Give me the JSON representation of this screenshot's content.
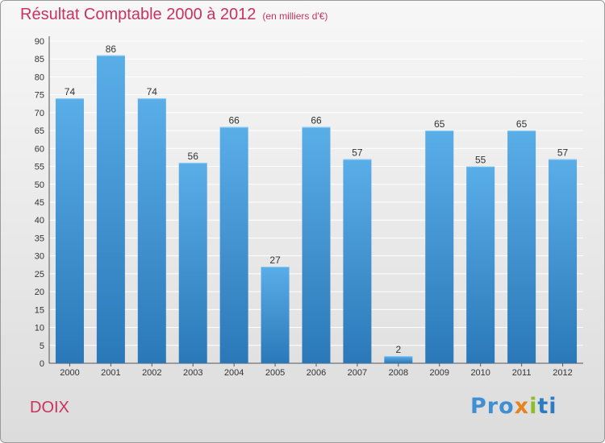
{
  "chart_data": {
    "type": "bar",
    "title": "Résultat Comptable 2000 à 2012",
    "subtitle": "(en milliers d'€)",
    "categories": [
      "2000",
      "2001",
      "2002",
      "2003",
      "2004",
      "2005",
      "2006",
      "2007",
      "2008",
      "2009",
      "2010",
      "2011",
      "2012"
    ],
    "values": [
      74,
      86,
      74,
      56,
      66,
      27,
      66,
      57,
      2,
      65,
      55,
      65,
      57
    ],
    "yticks": [
      0,
      5,
      10,
      15,
      20,
      25,
      30,
      35,
      40,
      45,
      50,
      55,
      60,
      65,
      70,
      75,
      80,
      85,
      90
    ],
    "ylim": [
      0,
      90
    ],
    "xlabel": "",
    "ylabel": "",
    "grid": true,
    "colors": {
      "bar_top": "#5aaee8",
      "bar_bottom": "#2a78b8",
      "title": "#c8325e",
      "grid": "#ffffff"
    }
  },
  "commune": "DOIX",
  "logo": {
    "p1": "Pro",
    "p2": "x",
    "p3": "i",
    "p4": "ti"
  }
}
